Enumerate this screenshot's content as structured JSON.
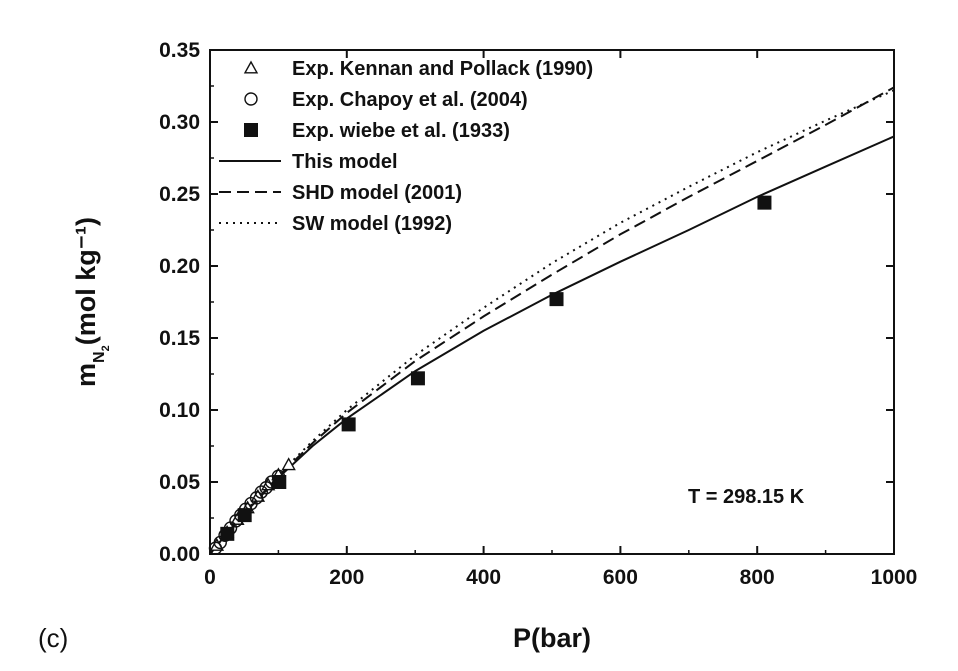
{
  "chart_data": {
    "type": "scatter",
    "xlabel": "P(bar)",
    "ylabel": "(mol kg⁻¹)",
    "ylabel_prefix": "m",
    "ylabel_subscript": "N",
    "ylabel_subsubscript": "2",
    "xlim": [
      0,
      1000
    ],
    "ylim": [
      0,
      0.35
    ],
    "xticks": [
      0,
      200,
      400,
      600,
      800,
      1000
    ],
    "xtick_labels": [
      "0",
      "200",
      "400",
      "600",
      "800",
      "1000"
    ],
    "yticks": [
      0,
      0.05,
      0.1,
      0.15,
      0.2,
      0.25,
      0.3,
      0.35
    ],
    "ytick_labels": [
      "0.00",
      "0.05",
      "0.10",
      "0.15",
      "0.20",
      "0.25",
      "0.30",
      "0.35"
    ],
    "annotation": "T = 298.15 K",
    "panel_label": "(c)",
    "legend_position": "top-left",
    "series": [
      {
        "name": "Exp. Kennan and Pollack (1990)",
        "kind": "points",
        "marker": "triangle-open",
        "x": [
          10,
          25,
          40,
          55,
          70,
          85,
          100,
          115
        ],
        "y": [
          0.006,
          0.015,
          0.024,
          0.032,
          0.04,
          0.048,
          0.055,
          0.062
        ]
      },
      {
        "name": "Exp. Chapoy et al. (2004)",
        "kind": "points",
        "marker": "circle-open",
        "x": [
          8,
          15,
          22,
          30,
          38,
          45,
          52,
          60,
          68,
          75,
          82,
          90,
          100
        ],
        "y": [
          0.004,
          0.008,
          0.013,
          0.018,
          0.023,
          0.027,
          0.031,
          0.035,
          0.039,
          0.043,
          0.046,
          0.05,
          0.054
        ]
      },
      {
        "name": "Exp. wiebe et al. (1933)",
        "kind": "points",
        "marker": "square-filled",
        "x": [
          25.3,
          50.7,
          101.3,
          202.7,
          304.0,
          506.6,
          810.6
        ],
        "y": [
          0.014,
          0.027,
          0.05,
          0.09,
          0.122,
          0.177,
          0.244
        ]
      },
      {
        "name": "This model",
        "kind": "line",
        "style": "solid",
        "x": [
          0,
          25,
          50,
          100,
          150,
          200,
          300,
          400,
          500,
          600,
          700,
          800,
          900,
          1000
        ],
        "y": [
          0,
          0.0145,
          0.028,
          0.053,
          0.075,
          0.094,
          0.127,
          0.155,
          0.18,
          0.203,
          0.225,
          0.248,
          0.269,
          0.29
        ]
      },
      {
        "name": "SHD model (2001)",
        "kind": "line",
        "style": "dashed",
        "x": [
          0,
          25,
          50,
          100,
          150,
          200,
          300,
          400,
          500,
          600,
          700,
          800,
          900,
          1000
        ],
        "y": [
          0,
          0.0145,
          0.028,
          0.054,
          0.077,
          0.098,
          0.134,
          0.165,
          0.194,
          0.222,
          0.248,
          0.273,
          0.298,
          0.324
        ]
      },
      {
        "name": "SW model (1992)",
        "kind": "line",
        "style": "dotted",
        "x": [
          0,
          25,
          50,
          100,
          150,
          200,
          300,
          400,
          500,
          600,
          700,
          800,
          900,
          1000
        ],
        "y": [
          0,
          0.0145,
          0.0285,
          0.055,
          0.0785,
          0.1,
          0.138,
          0.171,
          0.202,
          0.23,
          0.255,
          0.279,
          0.301,
          0.322
        ]
      }
    ]
  }
}
